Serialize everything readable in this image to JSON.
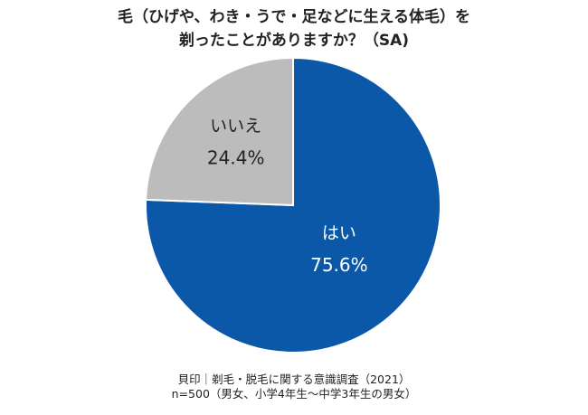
{
  "chart_data": {
    "type": "pie",
    "title": [
      "毛（ひげや、わき・うで・足などに生える体毛）を",
      "剃ったことがありますか？（SA)"
    ],
    "slices": [
      {
        "label": "はい",
        "value": 75.6,
        "value_label": "75.6%",
        "color": "#0b57a8",
        "label_color": "#ffffff"
      },
      {
        "label": "いいえ",
        "value": 24.4,
        "value_label": "24.4%",
        "color": "#bcbcbc",
        "label_color": "#222222"
      }
    ],
    "start": "12 o'clock",
    "direction": "clockwise"
  },
  "source": {
    "line1": "貝印｜剃毛・脱毛に関する意識調査（2021）",
    "line2": "n=500（男女、小学4年生～中学3年生の男女）"
  }
}
